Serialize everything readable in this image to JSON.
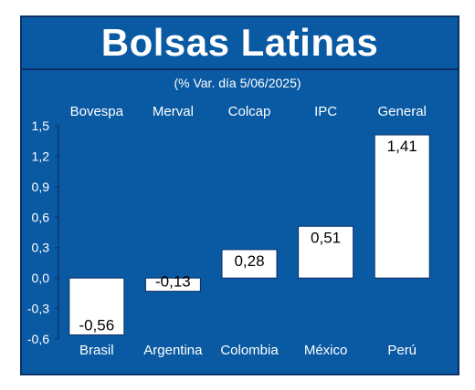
{
  "chart_data": {
    "type": "bar",
    "title": "Bolsas Latinas",
    "subtitle": "(% Var. día 5/06/2025)",
    "indices": [
      "Bovespa",
      "Merval",
      "Colcap",
      "IPC",
      "General"
    ],
    "categories": [
      "Brasil",
      "Argentina",
      "Colombia",
      "México",
      "Perú"
    ],
    "values": [
      -0.56,
      -0.13,
      0.28,
      0.51,
      1.41
    ],
    "value_labels": [
      "-0,56",
      "-0,13",
      "0,28",
      "0,51",
      "1,41"
    ],
    "y_ticks": [
      "1,5",
      "1,2",
      "0,9",
      "0,6",
      "0,3",
      "0,0",
      "-0,3",
      "-0,6"
    ],
    "ylim": [
      -0.6,
      1.5
    ],
    "grid": false,
    "colors": {
      "background": "#0a5aa3",
      "border": "#0b2f66",
      "bar": "#ffffff",
      "text": "#ffffff",
      "label": "#000000"
    }
  }
}
